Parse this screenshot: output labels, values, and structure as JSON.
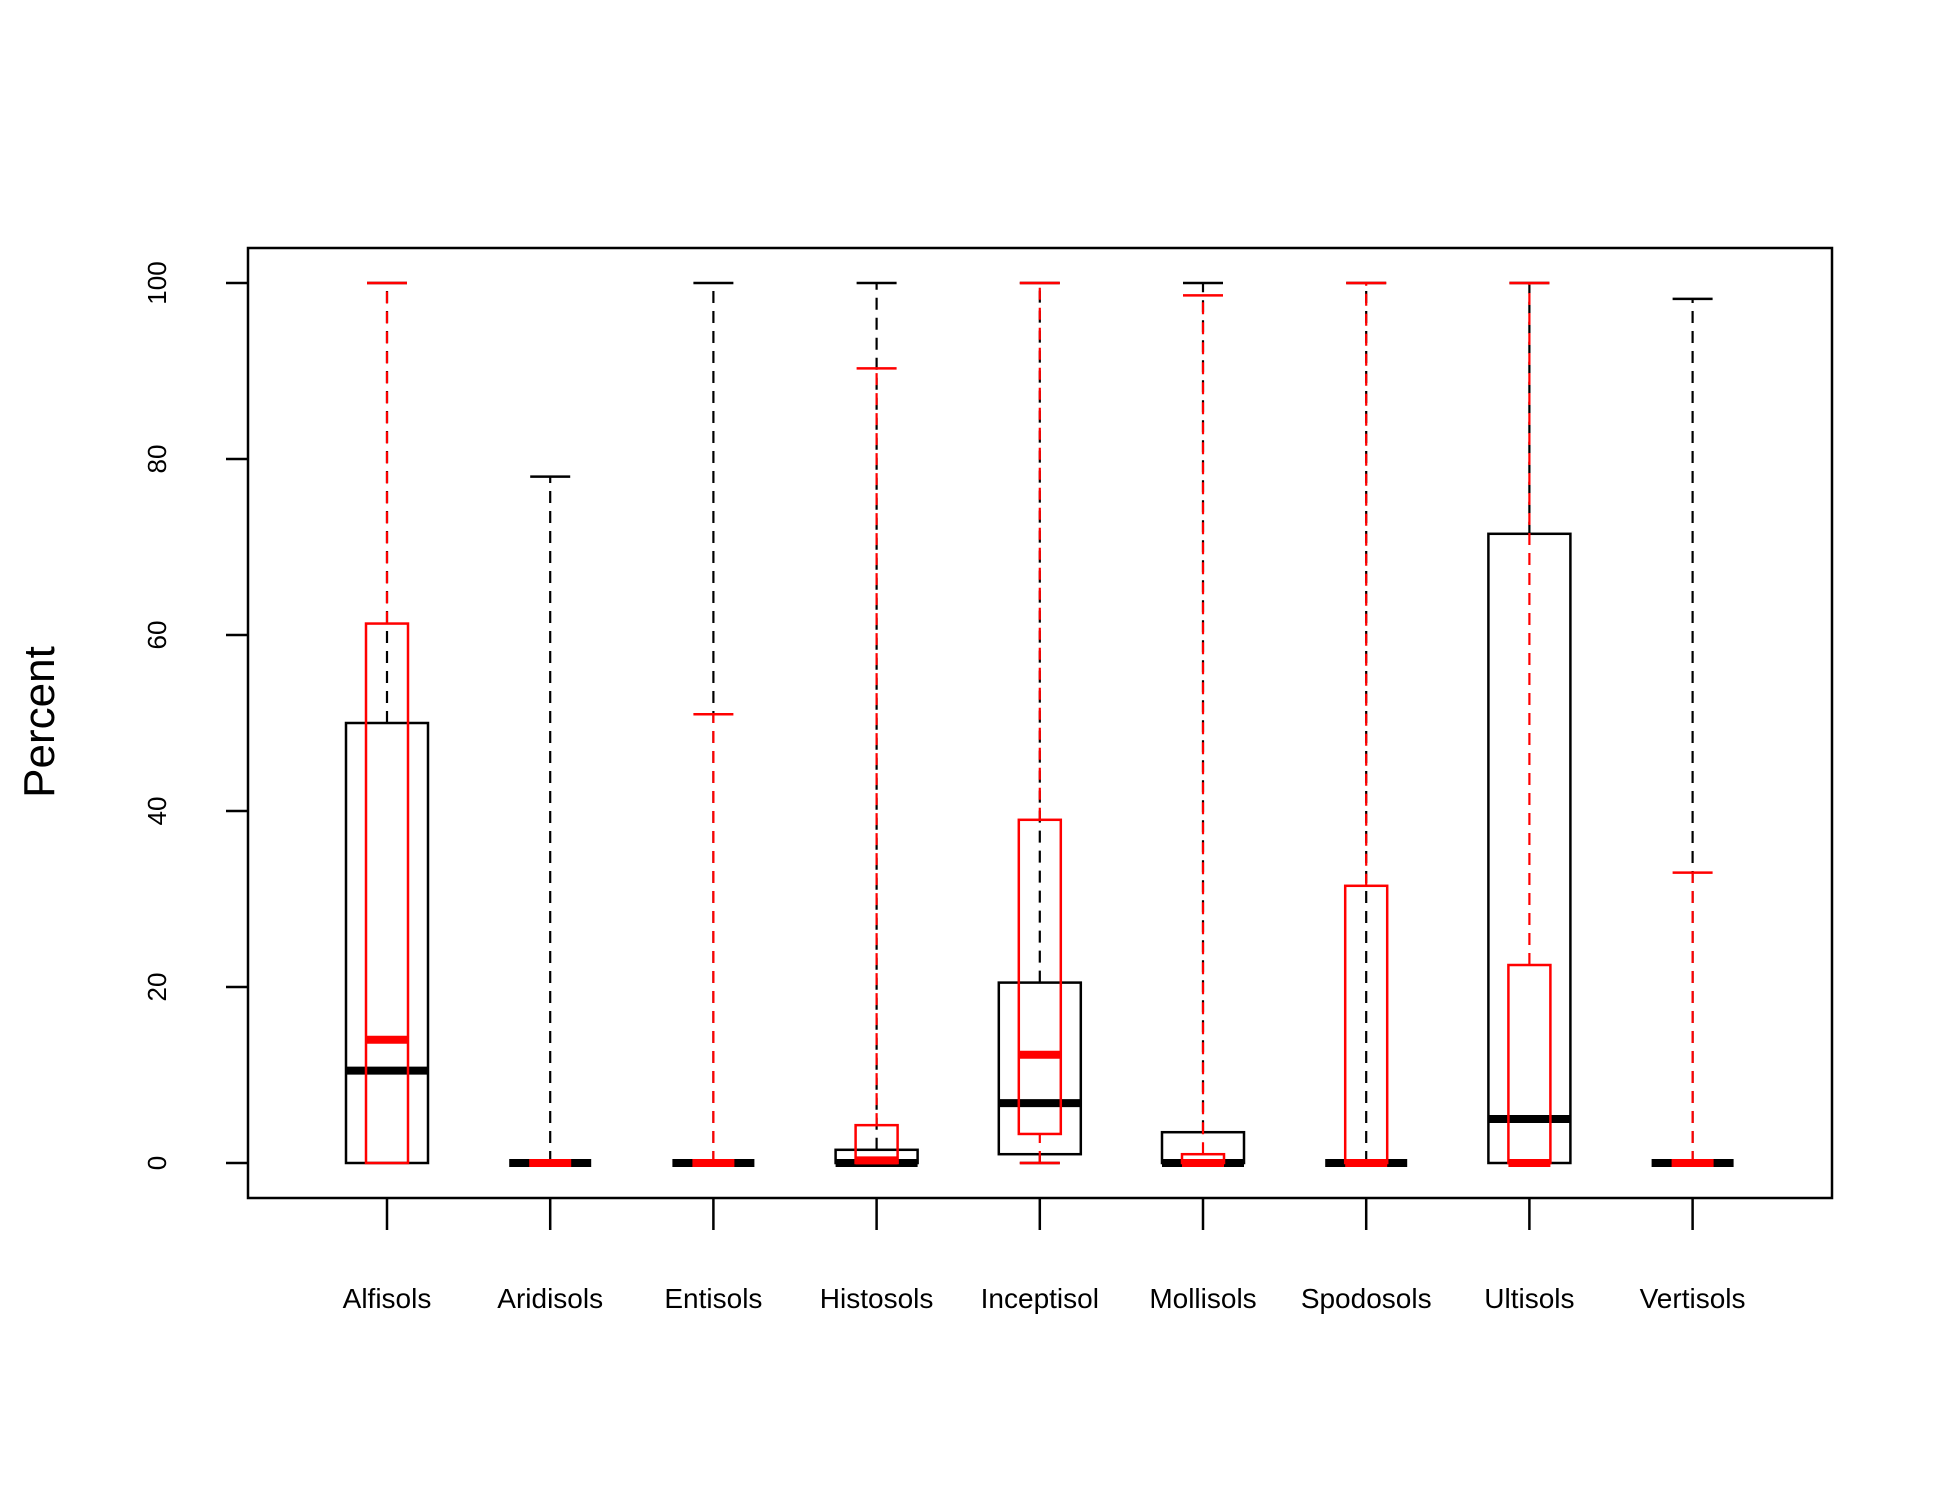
{
  "chart_data": {
    "type": "boxplot",
    "ylabel": "Percent",
    "ylim": [
      -4,
      104
    ],
    "yticks": [
      0,
      20,
      40,
      60,
      80,
      100
    ],
    "grid": false,
    "categories": [
      "Alfisols",
      "Aridisols",
      "Entisols",
      "Histosols",
      "Inceptisol",
      "Mollisols",
      "Spodosols",
      "Ultisols",
      "Vertisols"
    ],
    "series": [
      {
        "color": "#000000",
        "boxes": [
          {
            "min": 0,
            "q1": 0,
            "median": 10.5,
            "q3": 50,
            "max": 100
          },
          {
            "min": 0,
            "q1": 0,
            "median": 0,
            "q3": 0,
            "max": 78
          },
          {
            "min": 0,
            "q1": 0,
            "median": 0,
            "q3": 0,
            "max": 100
          },
          {
            "min": 0,
            "q1": 0,
            "median": 0,
            "q3": 1.5,
            "max": 100
          },
          {
            "min": 0,
            "q1": 1,
            "median": 6.8,
            "q3": 20.5,
            "max": 100
          },
          {
            "min": 0,
            "q1": 0,
            "median": 0,
            "q3": 3.5,
            "max": 100
          },
          {
            "min": 0,
            "q1": 0,
            "median": 0,
            "q3": 0,
            "max": 100
          },
          {
            "min": 0,
            "q1": 0,
            "median": 5,
            "q3": 71.5,
            "max": 100
          },
          {
            "min": 0,
            "q1": 0,
            "median": 0,
            "q3": 0,
            "max": 98.2
          }
        ]
      },
      {
        "color": "#ff0000",
        "boxes": [
          {
            "min": 0,
            "q1": 0,
            "median": 14,
            "q3": 61.3,
            "max": 100
          },
          {
            "min": 0,
            "q1": 0,
            "median": 0,
            "q3": 0,
            "max": 0
          },
          {
            "min": 0,
            "q1": 0,
            "median": 0,
            "q3": 0,
            "max": 51
          },
          {
            "min": 0,
            "q1": 0,
            "median": 0.3,
            "q3": 4.3,
            "max": 90.3
          },
          {
            "min": 0,
            "q1": 3.3,
            "median": 12.3,
            "q3": 39,
            "max": 100
          },
          {
            "min": 0,
            "q1": 0,
            "median": 0,
            "q3": 1,
            "max": 98.6
          },
          {
            "min": 0,
            "q1": 0,
            "median": 0,
            "q3": 31.5,
            "max": 100
          },
          {
            "min": 0,
            "q1": 0,
            "median": 0,
            "q3": 22.5,
            "max": 100
          },
          {
            "min": 0,
            "q1": 0,
            "median": 0,
            "q3": 0,
            "max": 33
          }
        ]
      }
    ]
  }
}
